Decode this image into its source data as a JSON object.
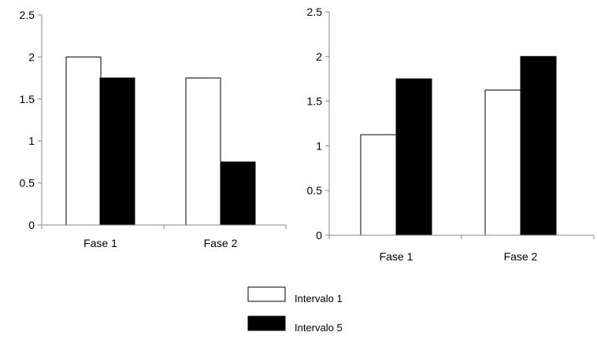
{
  "chart_data": [
    {
      "type": "bar",
      "title": "",
      "xlabel": "",
      "ylabel": "",
      "categories": [
        "Fase 1",
        "Fase 2"
      ],
      "ylim": [
        0,
        2.5
      ],
      "yticks": [
        "0",
        "0.5",
        "1",
        "1.5",
        "2",
        "2.5"
      ],
      "grid": false,
      "series": [
        {
          "name": "Intervalo 1",
          "values": [
            2.0,
            1.75
          ]
        },
        {
          "name": "Intervalo 5",
          "values": [
            1.75,
            0.75
          ]
        }
      ]
    },
    {
      "type": "bar",
      "title": "",
      "xlabel": "",
      "ylabel": "",
      "categories": [
        "Fase 1",
        "Fase 2"
      ],
      "ylim": [
        0,
        2.5
      ],
      "yticks": [
        "0",
        "0.5",
        "1",
        "1.5",
        "2",
        "2.5"
      ],
      "grid": false,
      "series": [
        {
          "name": "Intervalo 1",
          "values": [
            1.125,
            1.625
          ]
        },
        {
          "name": "Intervalo 5",
          "values": [
            1.75,
            2.0
          ]
        }
      ]
    }
  ],
  "legend": {
    "placement": "bottom-center",
    "items": [
      {
        "label": "Intervalo 1",
        "fill": "#ffffff",
        "stroke": "#000000"
      },
      {
        "label": "Intervalo 5",
        "fill": "#000000",
        "stroke": "#000000"
      }
    ]
  }
}
